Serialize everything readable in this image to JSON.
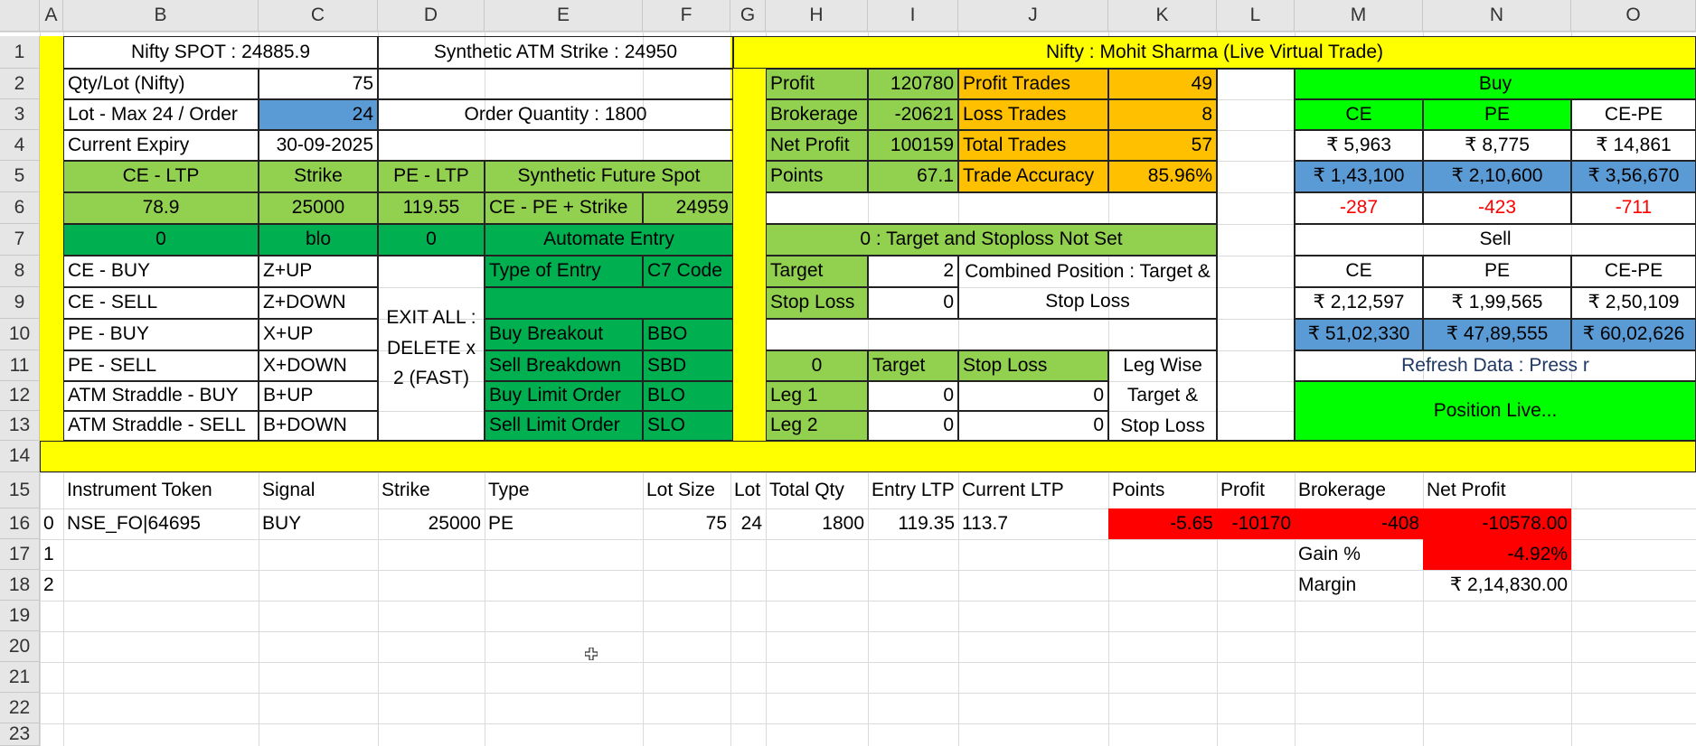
{
  "columns": [
    "A",
    "B",
    "C",
    "D",
    "E",
    "F",
    "G",
    "H",
    "I",
    "J",
    "K",
    "L",
    "M",
    "N",
    "O"
  ],
  "rows": [
    "1",
    "2",
    "3",
    "4",
    "5",
    "6",
    "7",
    "8",
    "9",
    "10",
    "11",
    "12",
    "13",
    "14",
    "15",
    "16",
    "17",
    "18",
    "19",
    "20",
    "21",
    "22",
    "23"
  ],
  "left_panel": {
    "nifty_spot": "Nifty SPOT : 24885.9",
    "synthetic_atm": "Synthetic ATM Strike : 24950",
    "qty_lot_label": "Qty/Lot (Nifty)",
    "qty_lot_value": "75",
    "lot_max_label": "Lot - Max 24 / Order",
    "lot_max_value": "24",
    "order_quantity": "Order Quantity : 1800",
    "expiry_label": "Current Expiry",
    "expiry_value": "30-09-2025",
    "ce_ltp_header": "CE - LTP",
    "strike_header": "Strike",
    "pe_ltp_header": "PE - LTP",
    "synthetic_future_header": "Synthetic Future Spot",
    "ce_ltp": "78.9",
    "strike": "25000",
    "pe_ltp": "119.55",
    "synthetic_formula": "CE - PE + Strike",
    "synthetic_value": "24959",
    "row7_b": "0",
    "row7_c": "blo",
    "row7_d": "0",
    "automate_entry": "Automate Entry",
    "shortcuts": [
      {
        "label": "CE - BUY",
        "key": "Z+UP"
      },
      {
        "label": "CE - SELL",
        "key": "Z+DOWN"
      },
      {
        "label": "PE - BUY",
        "key": "X+UP"
      },
      {
        "label": "PE - SELL",
        "key": "X+DOWN"
      },
      {
        "label": "ATM Straddle - BUY",
        "key": "B+UP"
      },
      {
        "label": "ATM Straddle - SELL",
        "key": "B+DOWN"
      }
    ],
    "exit_all": "EXIT ALL : DELETE x 2 (FAST)",
    "type_of_entry_header": "Type of Entry",
    "c7_code_header": "C7 Code",
    "entry_types": [
      {
        "name": "Buy Breakout",
        "code": "BBO"
      },
      {
        "name": "Sell Breakdown",
        "code": "SBD"
      },
      {
        "name": "Buy Limit Order",
        "code": "BLO"
      },
      {
        "name": "Sell Limit Order",
        "code": "SLO"
      }
    ]
  },
  "stats_panel": {
    "title": "Nifty : Mohit Sharma (Live Virtual Trade)",
    "profit_label": "Profit",
    "profit_value": "120780",
    "brokerage_label": "Brokerage",
    "brokerage_value": "-20621",
    "net_profit_label": "Net Profit",
    "net_profit_value": "100159",
    "points_label": "Points",
    "points_value": "67.1",
    "profit_trades_label": "Profit Trades",
    "profit_trades_value": "49",
    "loss_trades_label": "Loss Trades",
    "loss_trades_value": "8",
    "total_trades_label": "Total Trades",
    "total_trades_value": "57",
    "trade_accuracy_label": "Trade Accuracy",
    "trade_accuracy_value": "85.96%",
    "target_status": "0 : Target and Stoploss Not Set",
    "target_label": "Target",
    "target_value": "2",
    "stop_loss_label": "Stop Loss",
    "stop_loss_value": "0",
    "combined_position": "Combined Position : Target & Stop Loss",
    "leg_header_zero": "0",
    "leg_target_header": "Target",
    "leg_stoploss_header": "Stop Loss",
    "leg_wise": "Leg Wise Target & Stop Loss",
    "legs": [
      {
        "name": "Leg 1",
        "target": "0",
        "stop_loss": "0"
      },
      {
        "name": "Leg 2",
        "target": "0",
        "stop_loss": "0"
      }
    ]
  },
  "buy_sell_panel": {
    "buy_title": "Buy",
    "sell_title": "Sell",
    "headers": [
      "CE",
      "PE",
      "CE-PE"
    ],
    "buy_row1": [
      "₹ 5,963",
      "₹ 8,775",
      "₹ 14,861"
    ],
    "buy_row2": [
      "₹ 1,43,100",
      "₹ 2,10,600",
      "₹ 3,56,670"
    ],
    "buy_row3": [
      "-287",
      "-423",
      "-711"
    ],
    "sell_row1": [
      "₹ 2,12,597",
      "₹ 1,99,565",
      "₹ 2,50,109"
    ],
    "sell_row2": [
      "₹ 51,02,330",
      "₹ 47,89,555",
      "₹ 60,02,626"
    ],
    "refresh": "Refresh Data : Press r",
    "position_live": "Position Live..."
  },
  "positions": {
    "headers": [
      "Instrument Token",
      "Signal",
      "Strike",
      "Type",
      "Lot Size",
      "Lot",
      "Total Qty",
      "Entry LTP",
      "Current LTP",
      "Points",
      "Profit",
      "Brokerage",
      "Net Profit"
    ],
    "index_col": [
      "0",
      "1",
      "2"
    ],
    "row": {
      "token": "NSE_FO|64695",
      "signal": "BUY",
      "strike": "25000",
      "type": "PE",
      "lot_size": "75",
      "lot": "24",
      "total_qty": "1800",
      "entry_ltp": "119.35",
      "current_ltp": "113.7",
      "points": "-5.65",
      "profit": "-10170",
      "brokerage": "-408",
      "net_profit": "-10578.00"
    },
    "gain_label": "Gain %",
    "gain_value": "-4.92%",
    "margin_label": "Margin",
    "margin_value": "₹ 2,14,830.00"
  },
  "colors": {
    "yellow": "#ffff00",
    "light_green": "#92d050",
    "dark_green": "#00b050",
    "bright_green": "#00ff00",
    "blue": "#5b9bd5",
    "orange": "#ffc000",
    "red": "#ff0000"
  }
}
